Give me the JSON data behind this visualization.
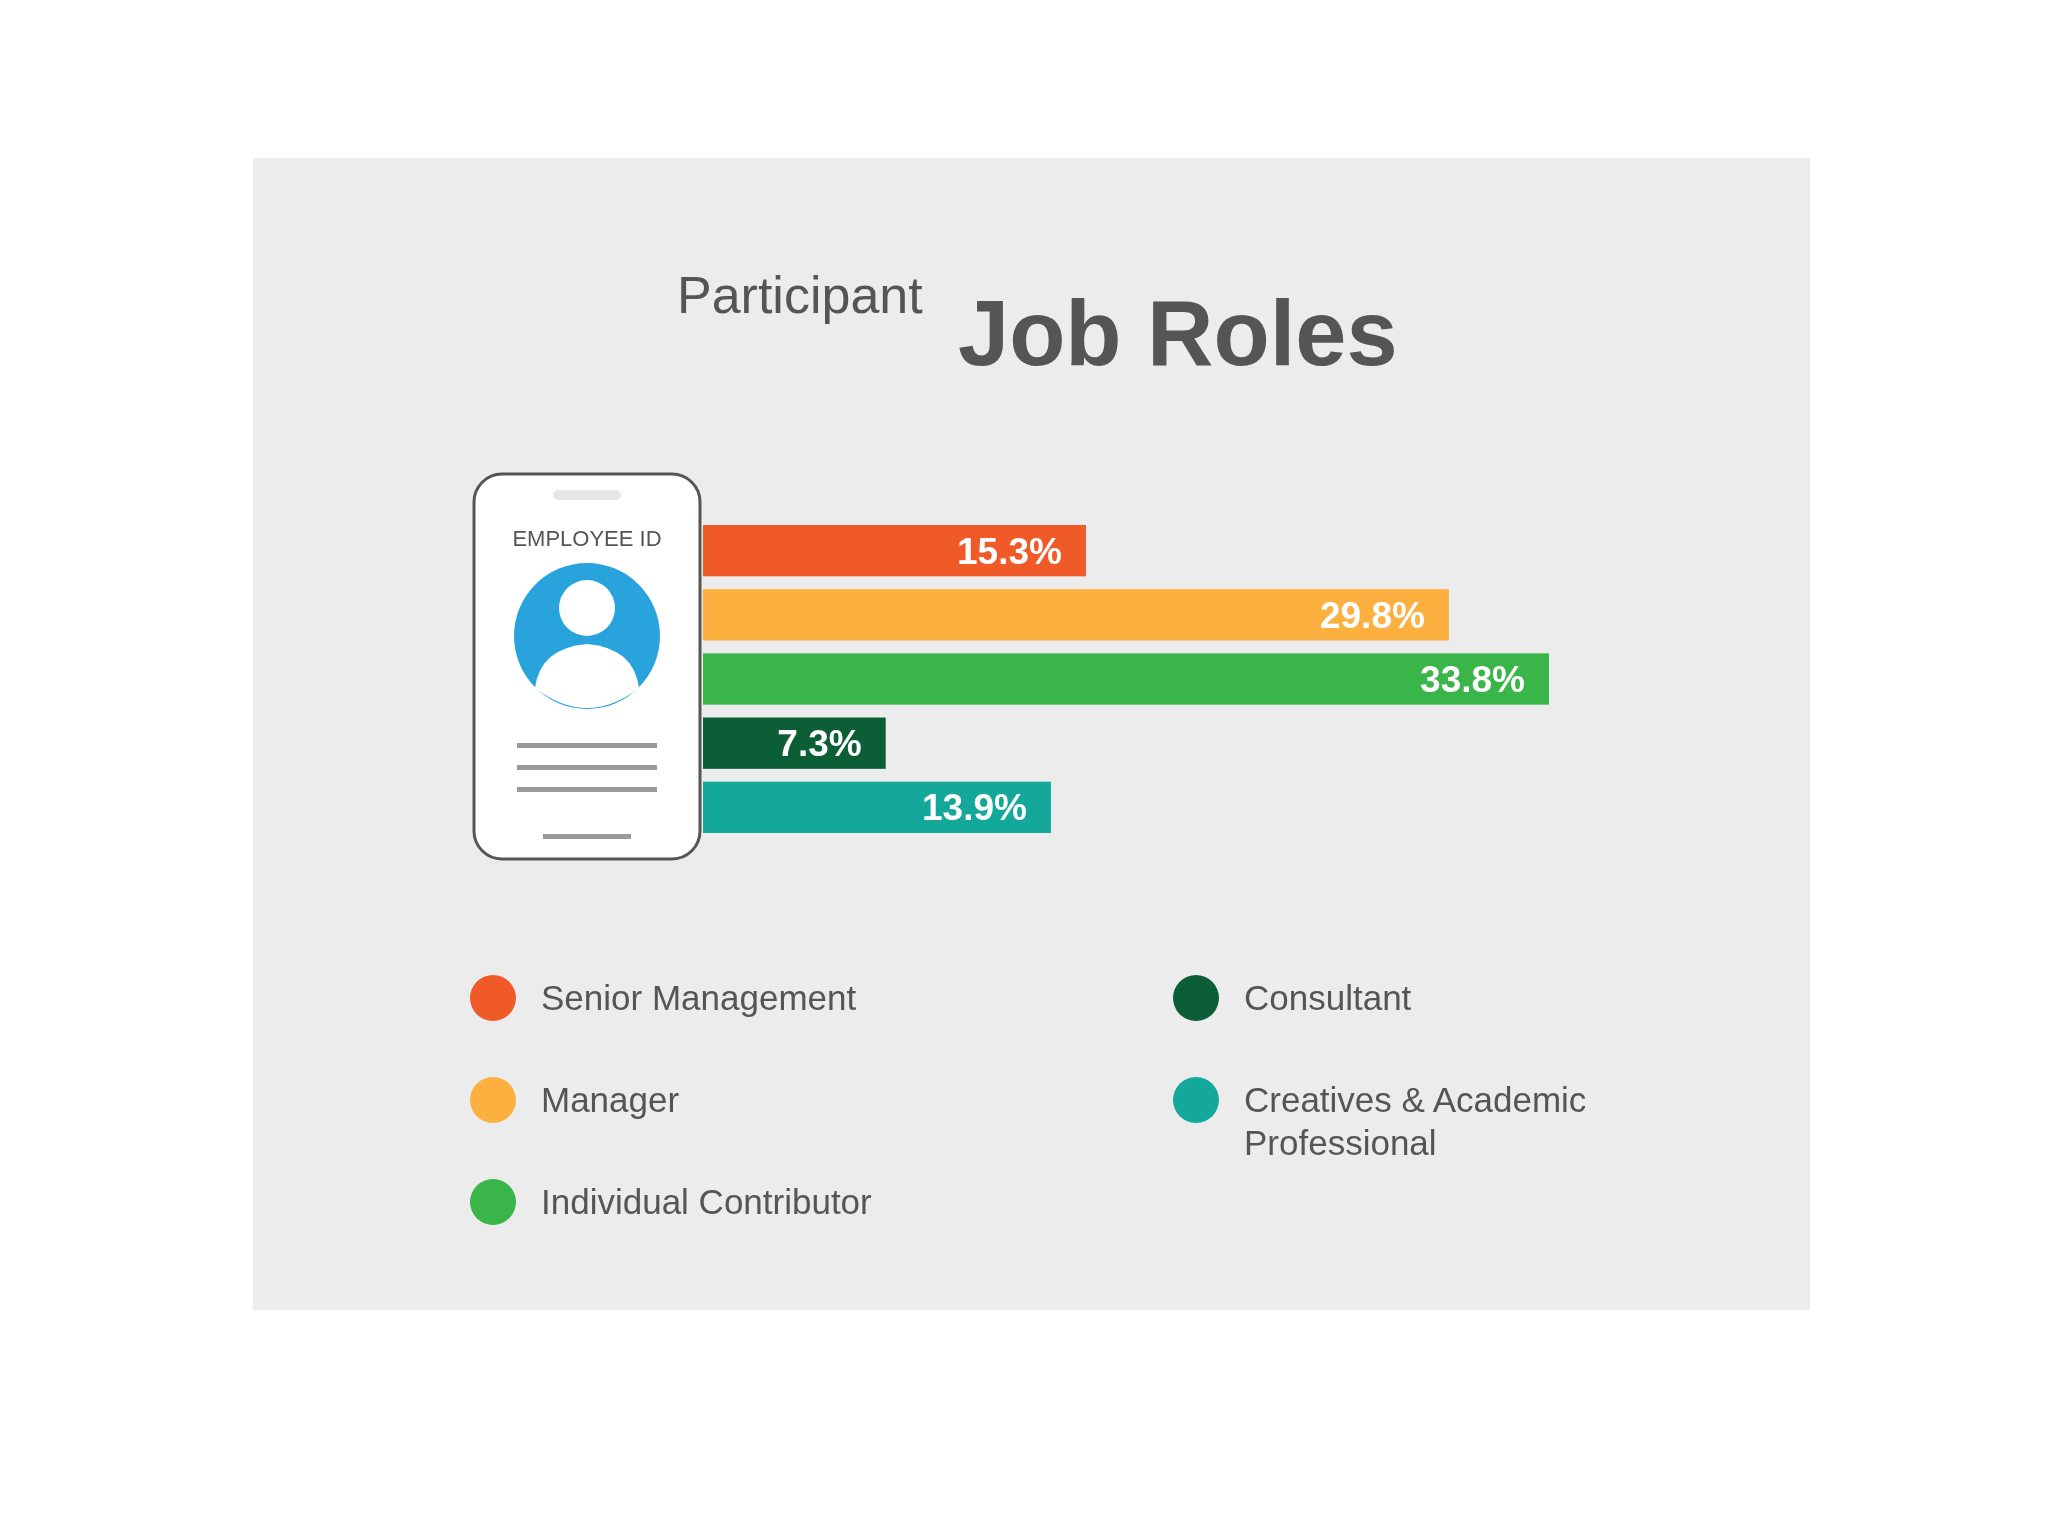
{
  "chart_data": {
    "type": "bar",
    "orientation": "horizontal",
    "title": "Participant Job Roles",
    "categories": [
      null
    ],
    "series": [
      {
        "name": "Senior Management",
        "color": "#f05a28",
        "values": [
          15.3
        ],
        "value_labels": [
          "15.3%"
        ]
      },
      {
        "name": "Manager",
        "color": "#fbb040",
        "values": [
          29.8
        ],
        "value_labels": [
          "29.8%"
        ]
      },
      {
        "name": "Individual Contributor",
        "color": "#39b54a",
        "values": [
          33.8
        ],
        "value_labels": [
          "33.8%"
        ]
      },
      {
        "name": "Consultant",
        "color": "#0b5e36",
        "values": [
          7.3
        ],
        "value_labels": [
          "7.3%"
        ]
      },
      {
        "name": "Creatives & Academic Professional",
        "color": "#14a89b",
        "values": [
          13.9
        ],
        "value_labels": [
          "13.9%"
        ]
      }
    ],
    "legend": "bottom",
    "annotations": [
      "EMPLOYEE ID"
    ]
  }
}
